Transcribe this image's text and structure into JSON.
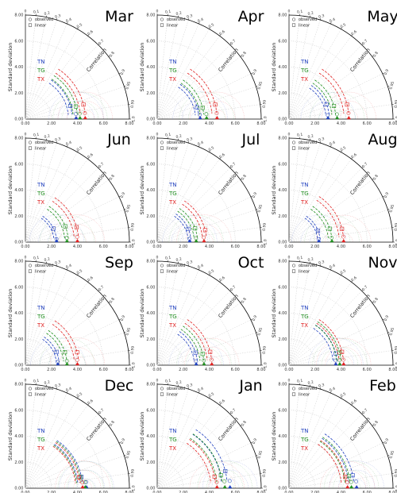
{
  "chart_data": {
    "type": "taylor_diagram",
    "std_ticks": [
      "0.00",
      "2.00",
      "4.00",
      "6.00",
      "8.00"
    ],
    "std_max": 8,
    "std_axis_label": "Standard deviation",
    "corr_axis_label": "Correlation",
    "corr_ticks": [
      "0",
      "0.1",
      "0.2",
      "0.3",
      "0.4",
      "0.5",
      "0.6",
      "0.7",
      "0.8",
      "0.9",
      "0.95",
      "0.99",
      "1.0"
    ],
    "legend": [
      {
        "marker": "circle",
        "label": "observed"
      },
      {
        "marker": "square",
        "label": "linear"
      }
    ],
    "series_labels": [
      {
        "name": "TN",
        "color": "#1f3fbf"
      },
      {
        "name": "TG",
        "color": "#1f8f1f"
      },
      {
        "name": "TX",
        "color": "#e02020"
      }
    ],
    "panels": [
      {
        "month": "Mar",
        "obs_std": {
          "TN": 3.9,
          "TG": 4.2,
          "TX": 4.6
        },
        "model": [
          {
            "series": "TN",
            "std": 3.6,
            "corr": 0.96
          },
          {
            "series": "TG",
            "std": 4.0,
            "corr": 0.97
          },
          {
            "series": "TX",
            "std": 4.6,
            "corr": 0.97
          }
        ]
      },
      {
        "month": "Apr",
        "obs_std": {
          "TN": 3.3,
          "TG": 3.8,
          "TX": 4.6
        },
        "model": [
          {
            "series": "TN",
            "std": 3.2,
            "corr": 0.96
          },
          {
            "series": "TG",
            "std": 3.6,
            "corr": 0.97
          },
          {
            "series": "TX",
            "std": 4.6,
            "corr": 0.97
          }
        ]
      },
      {
        "month": "May",
        "obs_std": {
          "TN": 3.0,
          "TG": 3.7,
          "TX": 4.6
        },
        "model": [
          {
            "series": "TN",
            "std": 3.1,
            "corr": 0.93
          },
          {
            "series": "TG",
            "std": 3.6,
            "corr": 0.96
          },
          {
            "series": "TX",
            "std": 4.6,
            "corr": 0.97
          }
        ]
      },
      {
        "month": "Jun",
        "obs_std": {
          "TN": 2.4,
          "TG": 3.2,
          "TX": 4.0
        },
        "model": [
          {
            "series": "TN",
            "std": 2.4,
            "corr": 0.9
          },
          {
            "series": "TG",
            "std": 3.3,
            "corr": 0.93
          },
          {
            "series": "TX",
            "std": 4.1,
            "corr": 0.96
          }
        ]
      },
      {
        "month": "Jul",
        "obs_std": {
          "TN": 2.5,
          "TG": 3.0,
          "TX": 3.6
        },
        "model": [
          {
            "series": "TN",
            "std": 2.6,
            "corr": 0.92
          },
          {
            "series": "TG",
            "std": 3.1,
            "corr": 0.94
          },
          {
            "series": "TX",
            "std": 3.8,
            "corr": 0.97
          }
        ]
      },
      {
        "month": "Aug",
        "obs_std": {
          "TN": 2.3,
          "TG": 3.3,
          "TX": 4.2
        },
        "model": [
          {
            "series": "TN",
            "std": 2.4,
            "corr": 0.93
          },
          {
            "series": "TG",
            "std": 3.3,
            "corr": 0.95
          },
          {
            "series": "TX",
            "std": 4.2,
            "corr": 0.97
          }
        ]
      },
      {
        "month": "Sep",
        "obs_std": {
          "TN": 2.5,
          "TG": 3.2,
          "TX": 4.0
        },
        "model": [
          {
            "series": "TN",
            "std": 2.6,
            "corr": 0.92
          },
          {
            "series": "TG",
            "std": 3.2,
            "corr": 0.95
          },
          {
            "series": "TX",
            "std": 4.1,
            "corr": 0.97
          }
        ]
      },
      {
        "month": "Oct",
        "obs_std": {
          "TN": 3.0,
          "TG": 3.6,
          "TX": 4.2
        },
        "model": [
          {
            "series": "TN",
            "std": 3.1,
            "corr": 0.95
          },
          {
            "series": "TG",
            "std": 3.6,
            "corr": 0.97
          },
          {
            "series": "TX",
            "std": 4.2,
            "corr": 0.97
          }
        ]
      },
      {
        "month": "Nov",
        "obs_std": {
          "TN": 3.6,
          "TG": 3.9,
          "TX": 4.2
        },
        "model": [
          {
            "series": "TN",
            "std": 3.7,
            "corr": 0.97
          },
          {
            "series": "TG",
            "std": 4.0,
            "corr": 0.97
          },
          {
            "series": "TX",
            "std": 4.2,
            "corr": 0.97
          }
        ]
      },
      {
        "month": "Dec",
        "obs_std": {
          "TN": 4.7,
          "TG": 4.6,
          "TX": 4.4
        },
        "model": [
          {
            "series": "TN",
            "std": 4.4,
            "corr": 0.98
          },
          {
            "series": "TG",
            "std": 4.3,
            "corr": 0.98
          },
          {
            "series": "TX",
            "std": 4.2,
            "corr": 0.98
          }
        ]
      },
      {
        "month": "Jan",
        "obs_std": {
          "TN": 5.6,
          "TG": 5.2,
          "TX": 4.6
        },
        "model": [
          {
            "series": "TN",
            "std": 5.4,
            "corr": 0.97
          },
          {
            "series": "TG",
            "std": 5.0,
            "corr": 0.98
          },
          {
            "series": "TX",
            "std": 4.5,
            "corr": 0.98
          }
        ]
      },
      {
        "month": "Feb",
        "obs_std": {
          "TN": 5.2,
          "TG": 4.8,
          "TX": 4.5
        },
        "model": [
          {
            "series": "TN",
            "std": 5.0,
            "corr": 0.98
          },
          {
            "series": "TG",
            "std": 4.7,
            "corr": 0.98
          },
          {
            "series": "TX",
            "std": 4.4,
            "corr": 0.98
          }
        ]
      }
    ]
  }
}
